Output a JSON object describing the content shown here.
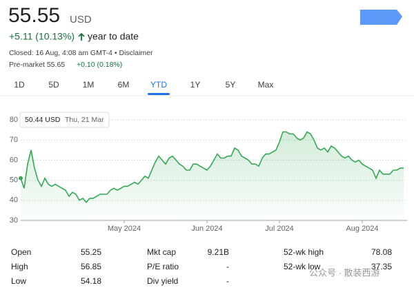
{
  "header": {
    "price": "55.55",
    "currency": "USD",
    "change": "+5.11 (10.13%)",
    "period": "year to date",
    "closed": "Closed: 16 Aug, 4:08 am GMT-4 • Disclaimer",
    "premarket_label": "Pre-market 55.65",
    "premarket_change": "+0.10 (0.18%)"
  },
  "tabs": [
    "1D",
    "5D",
    "1M",
    "6M",
    "YTD",
    "1Y",
    "5Y",
    "Max"
  ],
  "active_tab": "YTD",
  "tooltip": {
    "price": "50.44 USD",
    "date": "Thu, 21 Mar"
  },
  "chart_data": {
    "type": "line",
    "color": "#34a853",
    "ylim": [
      30,
      80
    ],
    "yticks": [
      30,
      40,
      50,
      60,
      70,
      80
    ],
    "grid": true,
    "categories": [
      null,
      null,
      null,
      null,
      null,
      null,
      null,
      null,
      null,
      null,
      null,
      null,
      null,
      null,
      null,
      null,
      null,
      null,
      null,
      null,
      null,
      null,
      null,
      null,
      null,
      null,
      null,
      null,
      null,
      null,
      "May 2024",
      null,
      null,
      null,
      null,
      null,
      null,
      null,
      null,
      null,
      null,
      null,
      null,
      null,
      null,
      null,
      null,
      null,
      null,
      null,
      null,
      null,
      null,
      null,
      "Jun 2024",
      null,
      null,
      null,
      null,
      null,
      null,
      null,
      null,
      null,
      null,
      null,
      null,
      null,
      null,
      null,
      null,
      null,
      null,
      null,
      null,
      "Jul 2024",
      null,
      null,
      null,
      null,
      null,
      null,
      null,
      null,
      null,
      null,
      null,
      null,
      null,
      null,
      null,
      null,
      null,
      null,
      null,
      null,
      null,
      null,
      null,
      "Aug 2024",
      null,
      null,
      null,
      null,
      null,
      null,
      null,
      null,
      null,
      null,
      null,
      null
    ],
    "values": [
      51,
      46,
      58,
      65,
      56,
      50,
      47,
      51,
      48,
      47,
      48,
      47,
      46,
      45,
      42,
      44,
      43,
      40,
      41,
      39,
      41,
      41,
      42,
      43,
      43,
      43,
      45,
      46,
      45,
      46,
      47,
      47,
      48,
      49,
      48,
      50,
      52,
      51,
      55,
      59,
      62,
      60,
      58,
      61,
      62,
      60,
      58,
      57,
      55,
      55,
      58,
      58,
      57,
      56,
      55,
      57,
      60,
      63,
      61,
      61,
      62,
      62,
      66,
      65,
      62,
      61,
      60,
      58,
      58,
      57,
      61,
      63,
      63,
      64,
      65,
      69,
      74,
      74,
      73,
      73,
      71,
      70,
      71,
      74,
      73,
      70,
      66,
      65,
      66,
      64,
      67,
      66,
      64,
      62,
      61,
      62,
      60,
      59,
      60,
      58,
      57,
      56,
      55,
      51,
      55,
      53,
      53,
      53,
      55,
      55,
      56,
      56
    ]
  },
  "stats": [
    [
      [
        "Open",
        "55.25"
      ],
      [
        "High",
        "56.85"
      ],
      [
        "Low",
        "54.18"
      ]
    ],
    [
      [
        "Mkt cap",
        "9.21B"
      ],
      [
        "P/E ratio",
        "-"
      ],
      [
        "Div yield",
        "-"
      ]
    ],
    [
      [
        "52-wk high",
        "78.08"
      ],
      [
        "52-wk low",
        "37.35"
      ]
    ]
  ],
  "watermark": "公众号 · 散装西游"
}
